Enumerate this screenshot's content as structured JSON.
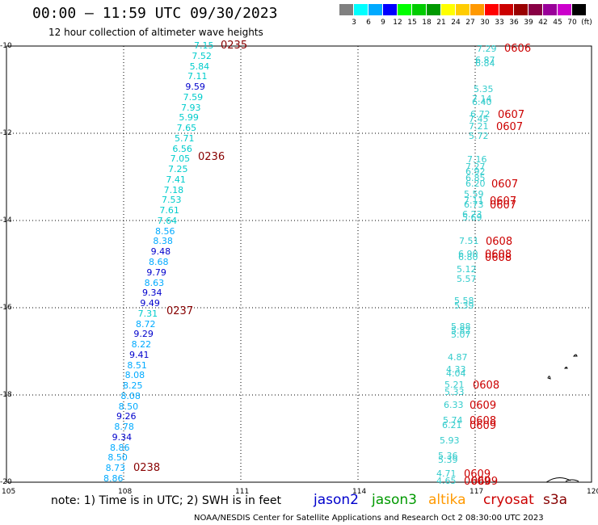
{
  "title": "00:00 – 11:59 UTC 09/30/2023",
  "subtitle": "12 hour collection of altimeter wave heights",
  "colorbar": {
    "colors": [
      "#808080",
      "#00ffff",
      "#00aaff",
      "#0000ff",
      "#00ff00",
      "#00cc00",
      "#009900",
      "#ffff00",
      "#ffcc00",
      "#ff9900",
      "#ff0000",
      "#cc0000",
      "#990000",
      "#880044",
      "#990099",
      "#cc00cc",
      "#000000"
    ],
    "labels": [
      "3",
      "6",
      "9",
      "12",
      "15",
      "18",
      "21",
      "24",
      "27",
      "30",
      "33",
      "36",
      "39",
      "42",
      "45",
      "70",
      "(ft)"
    ]
  },
  "axes": {
    "x_ticks": [
      "105",
      "108",
      "111",
      "114",
      "117",
      "120"
    ],
    "y_ticks": [
      "-10",
      "-12",
      "-14",
      "-16",
      "-18",
      "-20"
    ]
  },
  "track_west": {
    "values": [
      "7.15",
      "7.52",
      "5.84",
      "7.11",
      "9.59",
      "7.59",
      "7.93",
      "5.99",
      "7.65",
      "5.71",
      "6.56",
      "7.05",
      "7.25",
      "7.41",
      "7.18",
      "7.53",
      "7.61",
      "7.64",
      "8.56",
      "8.38",
      "9.48",
      "8.68",
      "9.79",
      "8.63",
      "9.34",
      "9.49",
      "7.31",
      "8.72",
      "9.29",
      "8.22",
      "9.41",
      "8.51",
      "8.08",
      "8.25",
      "8.08",
      "8.50",
      "9.26",
      "8.78",
      "9.34",
      "8.86",
      "8.50",
      "8.73",
      "8.86"
    ],
    "colors": [
      "c",
      "c",
      "c",
      "c",
      "b",
      "c",
      "c",
      "c",
      "c",
      "c",
      "c",
      "c",
      "c",
      "c",
      "c",
      "c",
      "c",
      "c",
      "a",
      "a",
      "b",
      "a",
      "b",
      "a",
      "b",
      "b",
      "c",
      "a",
      "b",
      "a",
      "b",
      "a",
      "a",
      "a",
      "a",
      "a",
      "b",
      "a",
      "b",
      "a",
      "a",
      "a",
      "a"
    ]
  },
  "track_west_times": [
    "0235",
    "0236",
    "0237",
    "0238"
  ],
  "track_east": {
    "values": [
      "7.29",
      "6.87",
      "6.84",
      "5.35",
      "7.14",
      "6.40",
      "6.72",
      "7.45",
      "7.21",
      "5.72",
      "7.16",
      "7.27",
      "6.92",
      "6.85",
      "6.20",
      "5.59",
      "7.11",
      "6.73",
      "6.23",
      "5.69",
      "7.51",
      "6.90",
      "6.80",
      "5.12",
      "5.57",
      "5.58",
      "5.39",
      "5.88",
      "5.82",
      "5.07",
      "4.87",
      "4.33",
      "4.04",
      "5.21",
      "5.33",
      "6.33",
      "5.74",
      "6.21",
      "5.93",
      "5.36",
      "5.39",
      "4.71",
      "4.65"
    ]
  },
  "track_east_times": [
    "0606",
    "0607",
    "0607",
    "0607",
    "0607",
    "0607",
    "0608",
    "0608",
    "0608",
    "0608",
    "0608",
    "0609",
    "0609",
    "0609",
    "0609",
    "0609"
  ],
  "note": "note:  1) Time is in UTC;  2) SWH is in feet",
  "satellites": [
    {
      "name": "jason2",
      "color": "#0000cc"
    },
    {
      "name": "jason3",
      "color": "#009900"
    },
    {
      "name": "altika",
      "color": "#ff9900"
    },
    {
      "name": "cryosat",
      "color": "#cc0000"
    },
    {
      "name": "s3a",
      "color": "#880000"
    }
  ],
  "credit": "NOAA/NESDIS Center for Satellite Applications and Research    Oct  2 08:30:00 UTC 2023"
}
